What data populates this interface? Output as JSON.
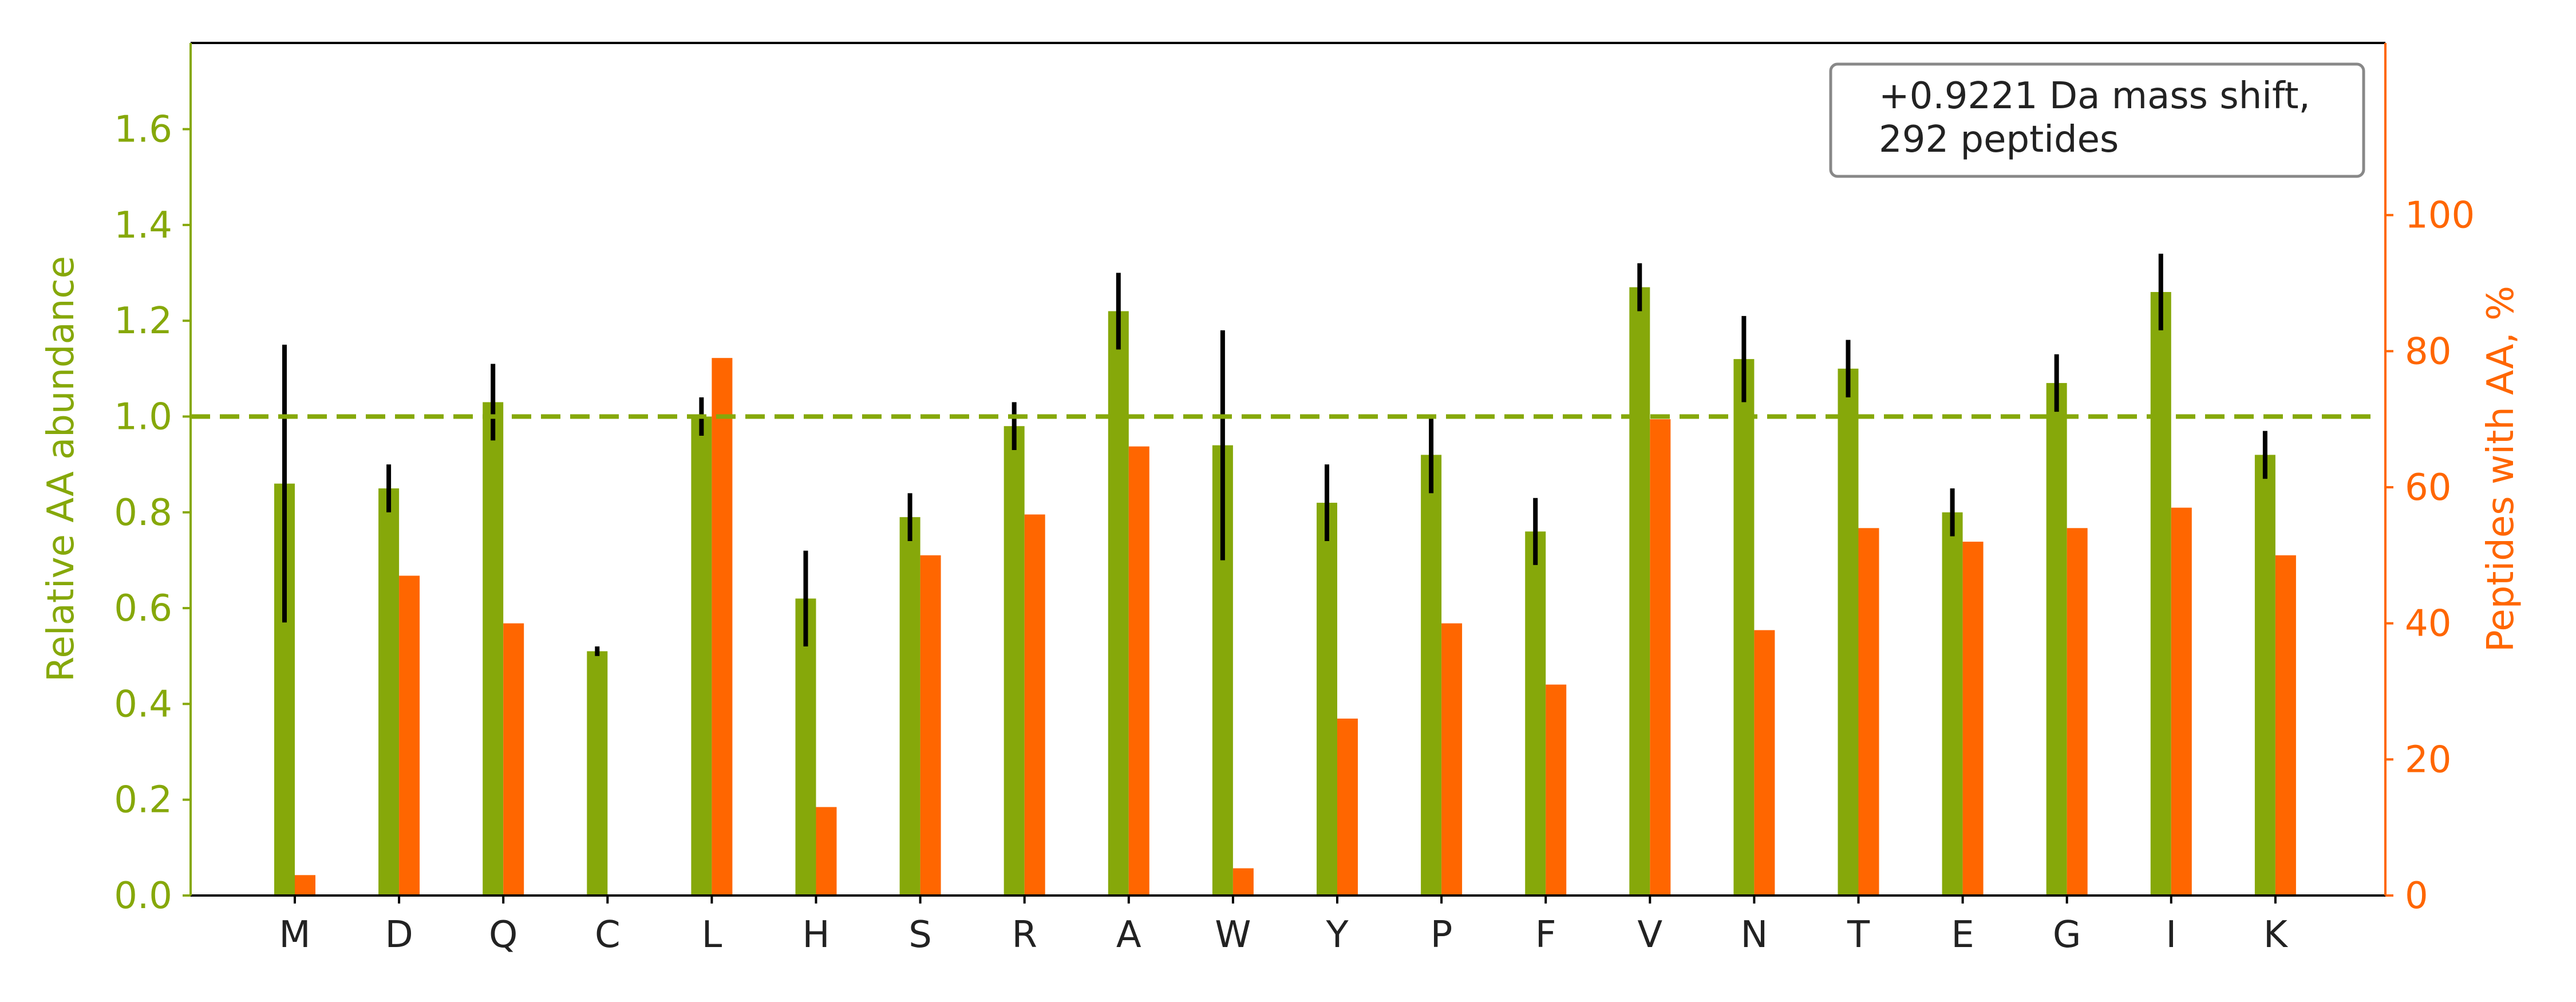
{
  "chart_data": {
    "type": "bar",
    "categories": [
      "M",
      "D",
      "Q",
      "C",
      "L",
      "H",
      "S",
      "R",
      "A",
      "W",
      "Y",
      "P",
      "F",
      "V",
      "N",
      "T",
      "E",
      "G",
      "I",
      "K"
    ],
    "series": [
      {
        "axis": "left",
        "color": "#86a80a",
        "values": [
          0.86,
          0.85,
          1.03,
          0.51,
          1.0,
          0.62,
          0.79,
          0.98,
          1.22,
          0.94,
          0.82,
          0.92,
          0.76,
          1.27,
          1.12,
          1.1,
          0.8,
          1.07,
          1.26,
          0.92
        ],
        "error": [
          0.29,
          0.05,
          0.08,
          0.01,
          0.04,
          0.1,
          0.05,
          0.05,
          0.08,
          0.24,
          0.08,
          0.08,
          0.07,
          0.05,
          0.09,
          0.06,
          0.05,
          0.06,
          0.08,
          0.05
        ]
      },
      {
        "axis": "right",
        "color": "#ff6600",
        "values": [
          3,
          47,
          40,
          0,
          79,
          13,
          50,
          56,
          66,
          4,
          26,
          40,
          31,
          70,
          39,
          54,
          52,
          54,
          57,
          50
        ]
      }
    ],
    "ylabel": "Relative AA abundance",
    "ylabel_right": "Peptides with AA, %",
    "ylim": [
      0,
      1.78
    ],
    "ylim_right": [
      0,
      125.3
    ],
    "yticks": [
      "0.0",
      "0.2",
      "0.4",
      "0.6",
      "0.8",
      "1.0",
      "1.2",
      "1.4",
      "1.6"
    ],
    "yticks_right": [
      "0",
      "20",
      "40",
      "60",
      "80",
      "100"
    ],
    "reference_line": {
      "y": 1.0,
      "style": "dashed",
      "color": "#86a80a"
    },
    "legend": {
      "position": "top-right",
      "line1": "+0.9221 Da mass shift,",
      "line2": "292 peptides"
    },
    "grid": false,
    "colors": {
      "left_axis": "#86a80a",
      "right_axis": "#ff6600",
      "error_bar": "#000000"
    }
  }
}
